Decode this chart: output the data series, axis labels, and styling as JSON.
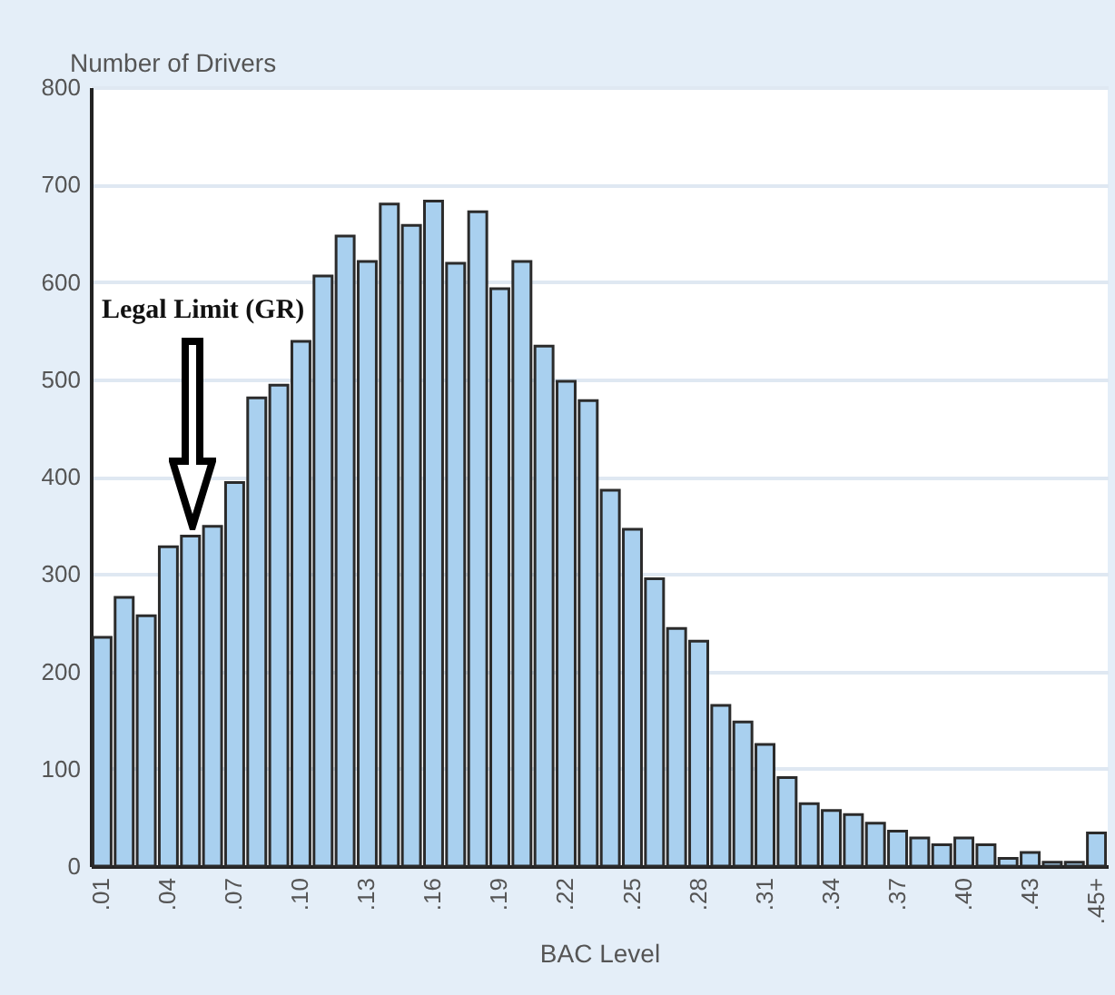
{
  "chart_data": {
    "type": "bar",
    "xlabel": "BAC Level",
    "ylabel": "Number of Drivers",
    "categories": [
      ".01",
      null,
      null,
      ".04",
      null,
      null,
      ".07",
      null,
      null,
      ".10",
      null,
      null,
      ".13",
      null,
      null,
      ".16",
      null,
      null,
      ".19",
      null,
      null,
      ".22",
      null,
      null,
      ".25",
      null,
      null,
      ".28",
      null,
      null,
      ".31",
      null,
      null,
      ".34",
      null,
      null,
      ".37",
      null,
      null,
      ".40",
      null,
      null,
      ".43",
      null,
      null,
      ".45+"
    ],
    "values": [
      235,
      276,
      257,
      328,
      339,
      349,
      394,
      481,
      494,
      539,
      606,
      647,
      621,
      680,
      658,
      683,
      619,
      672,
      593,
      621,
      534,
      498,
      478,
      386,
      346,
      295,
      244,
      231,
      165,
      148,
      125,
      91,
      64,
      57,
      53,
      44,
      36,
      29,
      22,
      29,
      22,
      8,
      14,
      4,
      4,
      34
    ],
    "color": "#a9d0ef",
    "ylim": [
      0,
      800
    ],
    "yticks": [
      0,
      100,
      200,
      300,
      400,
      500,
      600,
      700,
      800
    ],
    "grid": "y",
    "annotations": [
      "Legal Limit (GR)"
    ]
  }
}
